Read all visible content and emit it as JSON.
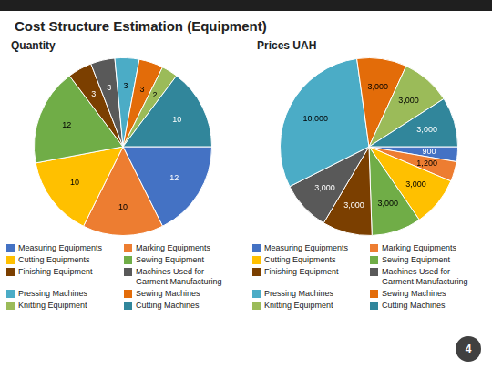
{
  "chart_data": [
    {
      "type": "pie",
      "title": "Cost Structure Estimation (Equipment)",
      "subtitle": "Quantity",
      "categories": [
        "Measuring Equipments",
        "Marking Equipments",
        "Cutting Equipments",
        "Sewing Equipment",
        "Finishing Equipment",
        "Machines Used for\nGarment Manufacturing",
        "Pressing Machines",
        "Sewing Machines",
        "Knitting Equipment",
        "Cutting Machines"
      ],
      "values": [
        12,
        10,
        10,
        12,
        3,
        3,
        3,
        3,
        2,
        10
      ],
      "colors": [
        "#4472C4",
        "#ED7D31",
        "#FFC000",
        "#70AD47",
        "#7B3F00",
        "#595959",
        "#4BACC6",
        "#E36C09",
        "#9BBB59",
        "#31869B"
      ],
      "data_labels": true,
      "legend": "bottom"
    },
    {
      "type": "pie",
      "subtitle": "Prices UAH",
      "categories": [
        "Measuring Equipments",
        "Marking Equipments",
        "Cutting Equipments",
        "Sewing Equipment",
        "Finishing Equipment",
        "Machines Used for\nGarment Manufacturing",
        "Pressing Machines",
        "Sewing Machines",
        "Knitting Equipment",
        "Cutting Machines"
      ],
      "values": [
        900,
        1200,
        3000,
        3000,
        3000,
        3000,
        10000,
        3000,
        3000,
        3000
      ],
      "value_labels": [
        "900",
        "1,200",
        "3,000",
        "3,000",
        "3,000",
        "3,000",
        "10,000",
        "3,000",
        "3,000",
        "3,000"
      ],
      "colors": [
        "#4472C4",
        "#ED7D31",
        "#FFC000",
        "#70AD47",
        "#7B3F00",
        "#595959",
        "#4BACC6",
        "#E36C09",
        "#9BBB59",
        "#31869B"
      ],
      "data_labels": true,
      "legend": "bottom",
      "annotations": [
        "4"
      ]
    }
  ]
}
